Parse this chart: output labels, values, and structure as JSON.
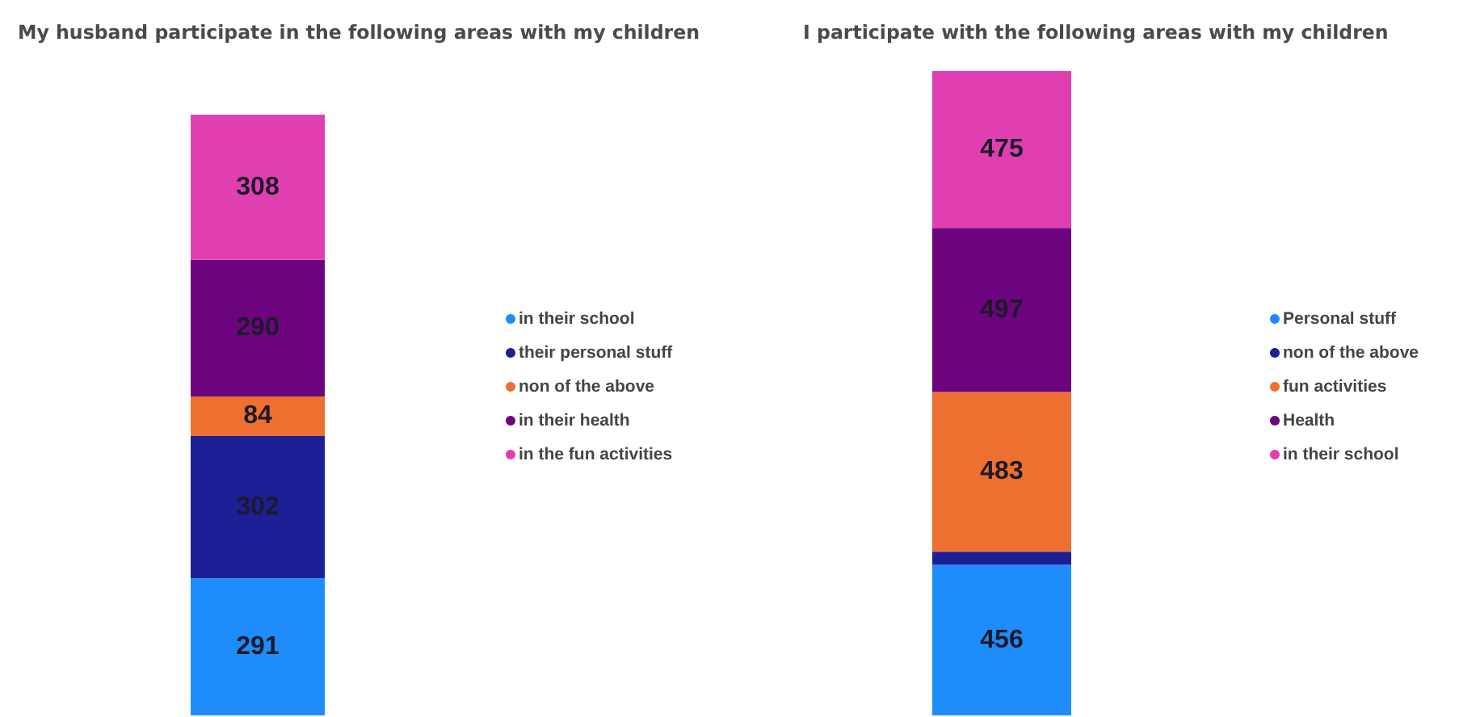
{
  "chart_data": [
    {
      "type": "bar",
      "title": "My husband participate in the following areas with my children",
      "categories": [
        null
      ],
      "stacked": true,
      "series": [
        {
          "name": "in their school",
          "color": "#1e8cfa",
          "values": [
            291
          ]
        },
        {
          "name": "their personal stuff",
          "color": "#1c1f96",
          "values": [
            302
          ]
        },
        {
          "name": "non of the above",
          "color": "#ee7030",
          "values": [
            84
          ]
        },
        {
          "name": "in their health",
          "color": "#6c047e",
          "values": [
            290
          ]
        },
        {
          "name": "in the fun activities",
          "color": "#e03fb2",
          "values": [
            308
          ]
        }
      ],
      "data_labels": true,
      "legend": "right",
      "tick_labels": false
    },
    {
      "type": "bar",
      "title": "I participate with the following areas with my children",
      "categories": [
        null
      ],
      "stacked": true,
      "series": [
        {
          "name": "Personal stuff",
          "color": "#1e8cfa",
          "values": [
            456
          ],
          "value_labels": [
            "456"
          ]
        },
        {
          "name": "non of the above",
          "color": "#1c1f96",
          "values": [
            40
          ],
          "value_labels": [
            null
          ]
        },
        {
          "name": "fun activities",
          "color": "#ee7030",
          "values": [
            483
          ],
          "value_labels": [
            "483"
          ]
        },
        {
          "name": "Health",
          "color": "#6c047e",
          "values": [
            497
          ],
          "value_labels": [
            "497"
          ]
        },
        {
          "name": "in their school",
          "color": "#e03fb2",
          "values": [
            475
          ],
          "value_labels": [
            "475"
          ]
        }
      ],
      "legend": "right",
      "tick_labels": false
    }
  ]
}
